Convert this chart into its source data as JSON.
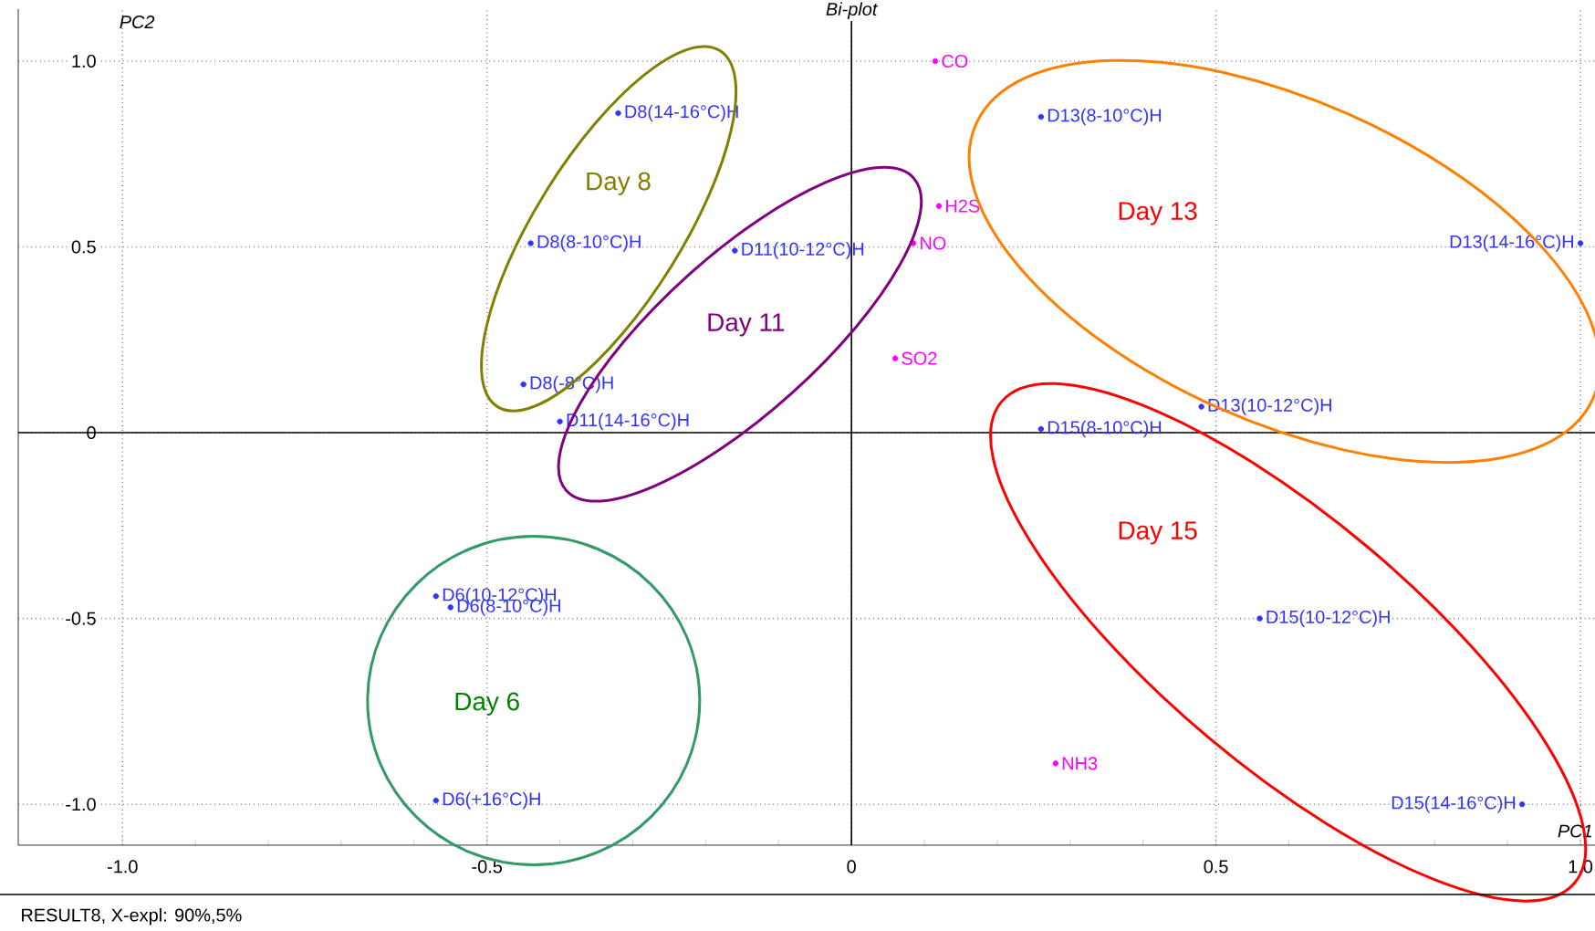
{
  "chart_data": {
    "type": "scatter",
    "title": "Bi-plot",
    "xlabel": "PC1",
    "ylabel": "PC2",
    "series": [
      {
        "color": "#3333ff",
        "x": [
          -0.32,
          -0.44,
          -0.16,
          -0.45,
          -0.4,
          0.26,
          1.0,
          0.48,
          0.26,
          0.56,
          0.92,
          -0.57,
          -0.55,
          -0.57
        ],
        "values": [
          0.86,
          0.51,
          0.49,
          0.13,
          0.03,
          0.85,
          0.51,
          0.07,
          0.01,
          -0.5,
          -1.0,
          -0.44,
          -0.47,
          -0.99
        ]
      },
      {
        "color": "#ff00ff",
        "x": [
          0.115,
          0.12,
          0.085,
          0.06,
          0.28
        ],
        "values": [
          1.0,
          0.61,
          0.51,
          0.2,
          -0.89
        ]
      }
    ],
    "xlim": [
      -1.143,
      1.02
    ],
    "ylim": [
      -1.11,
      1.14
    ],
    "xticks": [
      {
        "value": -1.0,
        "label": "-1.0"
      },
      {
        "value": -0.5,
        "label": "-0.5"
      },
      0,
      {
        "value": 0.5,
        "label": "0.5"
      },
      {
        "value": 1.0,
        "label": "1.0"
      }
    ],
    "yticks": [
      {
        "value": -1.0,
        "label": "-1.0"
      },
      {
        "value": -0.5,
        "label": "-0.5"
      },
      0,
      {
        "value": 0.5,
        "label": "0.5"
      },
      {
        "value": 1.0,
        "label": "1.0"
      }
    ],
    "grid": true,
    "annotations": [
      {
        "text": "D8(14-16°C)H",
        "x": -0.32,
        "y": 0.86
      },
      {
        "text": "D8(8-10°C)H",
        "x": -0.44,
        "y": 0.51
      },
      {
        "text": "D11(10-12°C)H",
        "x": -0.16,
        "y": 0.49
      },
      {
        "text": "D8(-8°C)H",
        "x": -0.45,
        "y": 0.13
      },
      {
        "text": "D11(14-16°C)H",
        "x": -0.4,
        "y": 0.03
      },
      {
        "text": "D13(8-10°C)H",
        "x": 0.26,
        "y": 0.85
      },
      {
        "text": "D13(14-16°C)H",
        "x": 1.0,
        "y": 0.51
      },
      {
        "text": "D13(10-12°C)H",
        "x": 0.48,
        "y": 0.07
      },
      {
        "text": "D15(8-10°C)H",
        "x": 0.26,
        "y": 0.01
      },
      {
        "text": "D15(10-12°C)H",
        "x": 0.56,
        "y": -0.5
      },
      {
        "text": "D15(14-16°C)H",
        "x": 0.92,
        "y": -1.0
      },
      {
        "text": "D6(10-12°C)H",
        "x": -0.57,
        "y": -0.44
      },
      {
        "text": "D6(8-10°C)H",
        "x": -0.55,
        "y": -0.47
      },
      {
        "text": "D6(+16°C)H",
        "x": -0.57,
        "y": -0.99
      },
      {
        "text": "CO",
        "x": 0.115,
        "y": 1.0
      },
      {
        "text": "H2S",
        "x": 0.12,
        "y": 0.61
      },
      {
        "text": "NO",
        "x": 0.085,
        "y": 0.51
      },
      {
        "text": "SO2",
        "x": 0.06,
        "y": 0.2
      },
      {
        "text": "NH3",
        "x": 0.28,
        "y": -0.89
      },
      "Day 8",
      "Day 11",
      "Day 13",
      "Day 15",
      "Day 6",
      "RESULT8, X-expl: 90%,5%"
    ]
  }
}
